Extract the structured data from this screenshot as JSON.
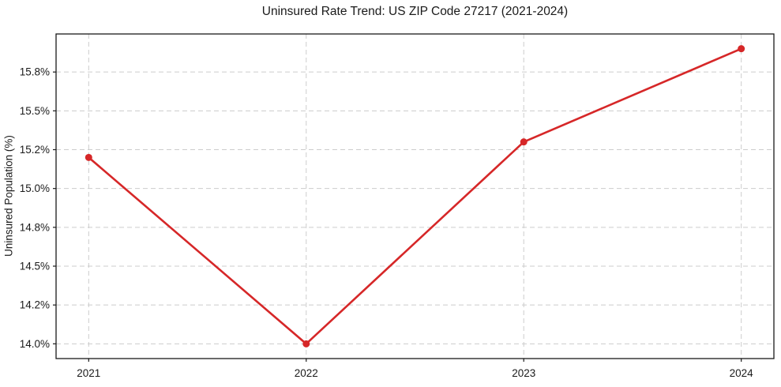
{
  "chart_data": {
    "type": "line",
    "title": "Uninsured Rate Trend: US ZIP Code 27217 (2021-2024)",
    "xlabel": "",
    "ylabel": "Uninsured Population (%)",
    "x": [
      2021,
      2022,
      2023,
      2024
    ],
    "x_tick_labels": [
      "2021",
      "2022",
      "2023",
      "2024"
    ],
    "series": [
      {
        "name": "Uninsured Rate",
        "values": [
          15.2,
          14.0,
          15.3,
          15.9
        ]
      }
    ],
    "y_ticks": [
      {
        "value": 14.0,
        "label": "14.0%"
      },
      {
        "value": 14.25,
        "label": "14.2%"
      },
      {
        "value": 14.5,
        "label": "14.5%"
      },
      {
        "value": 14.75,
        "label": "14.8%"
      },
      {
        "value": 15.0,
        "label": "15.0%"
      },
      {
        "value": 15.25,
        "label": "15.2%"
      },
      {
        "value": 15.5,
        "label": "15.5%"
      },
      {
        "value": 15.75,
        "label": "15.8%"
      }
    ],
    "xlim": [
      2020.85,
      2024.15
    ],
    "ylim": [
      13.905,
      15.995
    ],
    "grid": true,
    "grid_style": "dashed",
    "legend": "none",
    "colors": {
      "line": "#d62728",
      "marker": "#d62728",
      "grid": "#cccccc",
      "axis": "#1a1a1a",
      "text": "#1a1a1a",
      "background": "#ffffff"
    }
  }
}
